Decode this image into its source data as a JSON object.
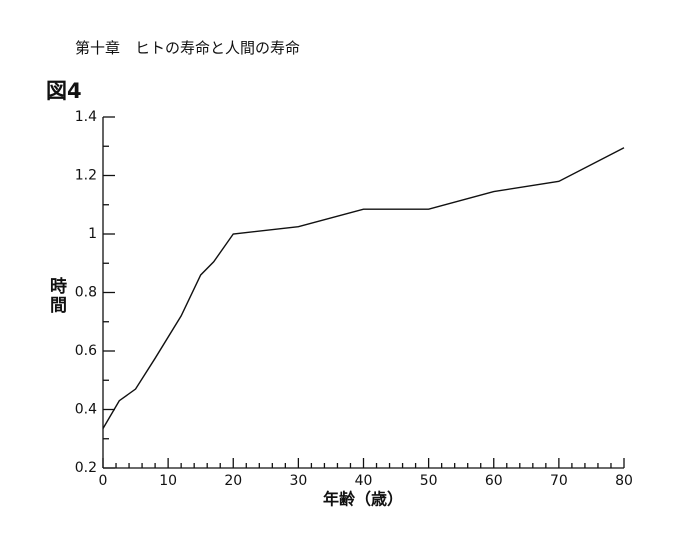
{
  "page_header": "第十章　ヒトの寿命と人間の寿命",
  "chart_data": {
    "type": "line",
    "title": "図4",
    "x_label": "年齢（歳）",
    "y_label": "時間",
    "x": [
      0,
      2.5,
      5,
      8,
      12,
      15,
      17,
      20,
      30,
      40,
      50,
      60,
      70,
      80
    ],
    "values": [
      0.335,
      0.43,
      0.47,
      0.575,
      0.72,
      0.86,
      0.905,
      1.0,
      1.025,
      1.085,
      1.085,
      1.145,
      1.18,
      1.295
    ],
    "color": "#111111",
    "xlim": [
      0,
      80
    ],
    "xticks": [
      0,
      10,
      20,
      30,
      40,
      50,
      60,
      70,
      80
    ],
    "ylim": [
      0.2,
      1.4
    ],
    "yticks": [
      0.2,
      0.4,
      0.6,
      0.8,
      1,
      1.2,
      1.4
    ]
  }
}
